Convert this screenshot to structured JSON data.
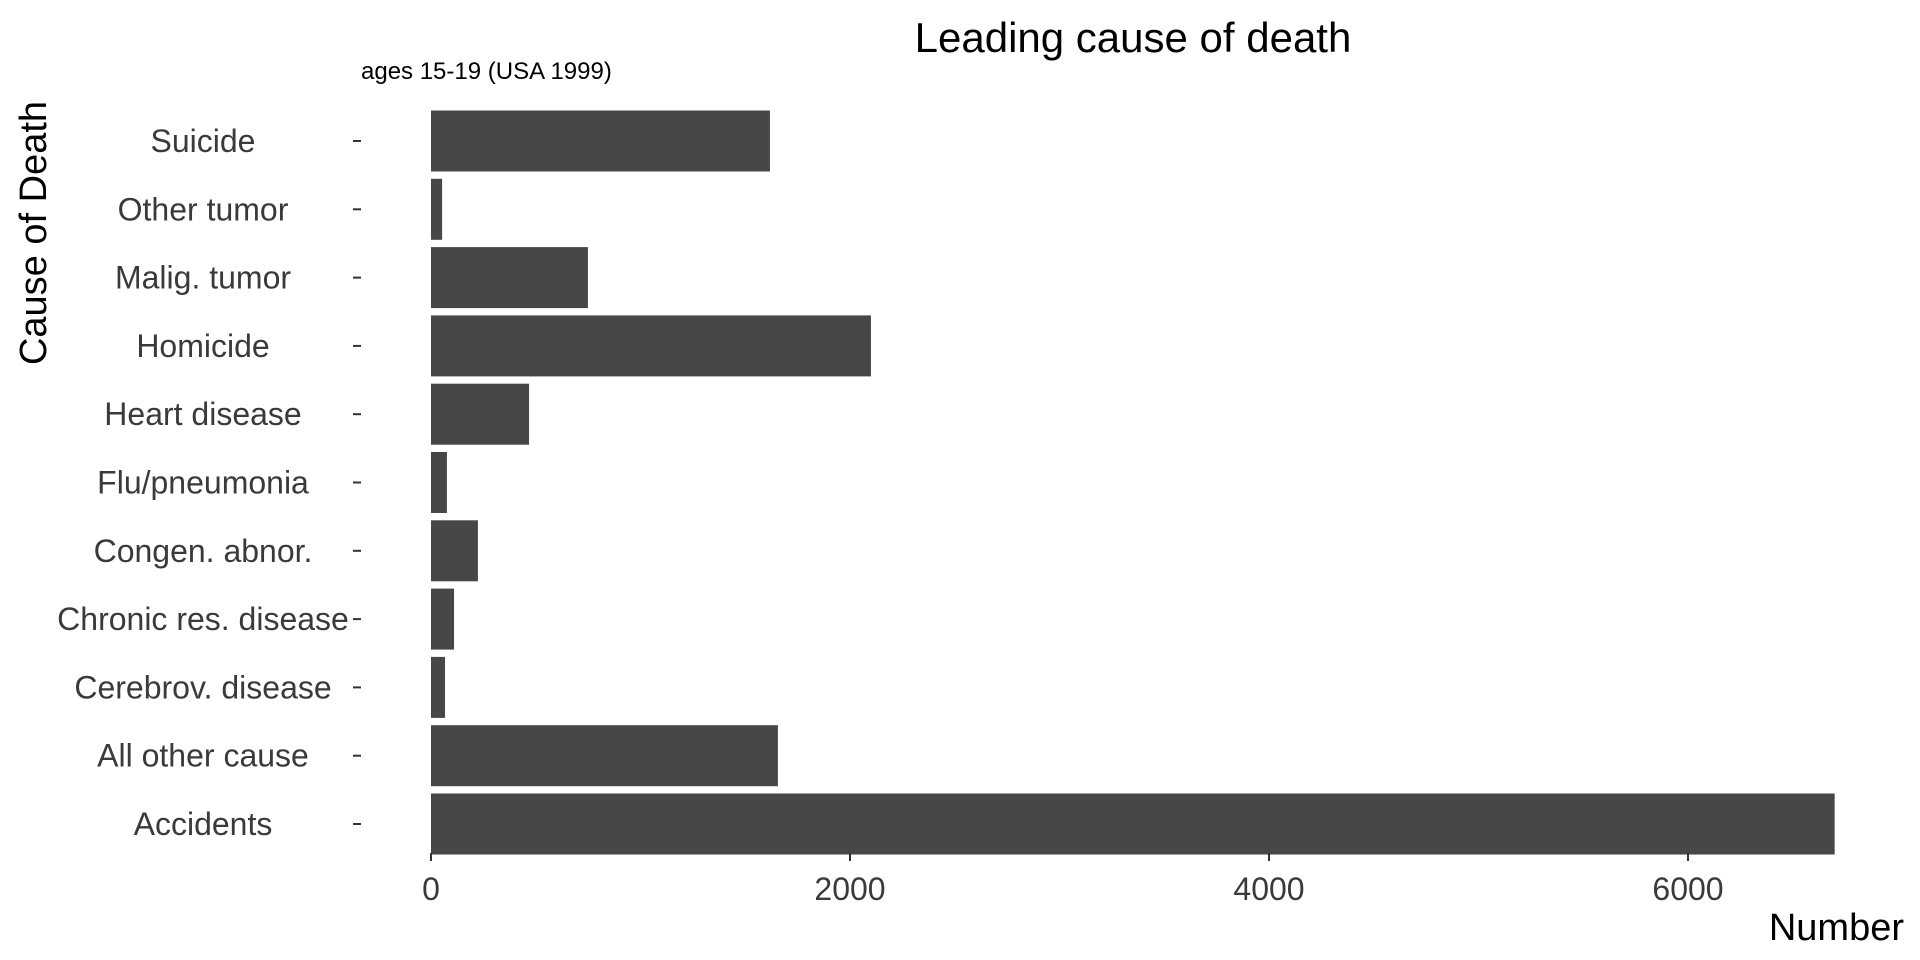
{
  "chart_data": {
    "type": "bar",
    "orientation": "horizontal",
    "title": "Leading cause of death",
    "subtitle": "ages 15-19 (USA 1999)",
    "xlabel": "Number",
    "ylabel": "Cause of Death",
    "categories": [
      "Suicide",
      "Other tumor",
      "Malig. tumor",
      "Homicide",
      "Heart disease",
      "Flu/pneumonia",
      "Congen. abnor.",
      "Chronic res. disease",
      "Cerebrov. disease",
      "All other cause",
      "Accidents"
    ],
    "values": [
      1618,
      53,
      749,
      2100,
      468,
      76,
      224,
      110,
      67,
      1656,
      6700
    ],
    "xticks": [
      0,
      2000,
      4000,
      6000
    ],
    "xtick_labels": [
      "0",
      "2000",
      "4000",
      "6000"
    ],
    "xlim": [
      0,
      6700
    ],
    "grid": false,
    "bar_color": "#474747"
  }
}
